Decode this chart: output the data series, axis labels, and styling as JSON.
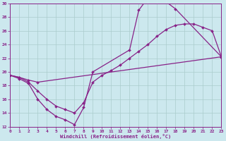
{
  "xlabel": "Windchill (Refroidissement éolien,°C)",
  "xlim": [
    0,
    23
  ],
  "ylim": [
    12,
    30
  ],
  "xticks": [
    0,
    1,
    2,
    3,
    4,
    5,
    6,
    7,
    8,
    9,
    10,
    11,
    12,
    13,
    14,
    15,
    16,
    17,
    18,
    19,
    20,
    21,
    22,
    23
  ],
  "yticks": [
    12,
    14,
    16,
    18,
    20,
    22,
    24,
    26,
    28,
    30
  ],
  "bg_color": "#cce8ee",
  "line_color": "#882288",
  "grid_color": "#aacccc",
  "curve1_x": [
    0,
    1,
    2,
    3,
    4,
    5,
    6,
    7,
    8,
    9,
    13,
    14,
    15,
    16,
    17,
    18,
    23
  ],
  "curve1_y": [
    19.5,
    19.0,
    18.3,
    16.0,
    14.5,
    13.5,
    13.0,
    12.3,
    14.8,
    20.0,
    23.2,
    29.0,
    30.8,
    30.5,
    30.2,
    29.2,
    22.2
  ],
  "curve2_x": [
    0,
    1,
    2,
    3,
    23
  ],
  "curve2_y": [
    19.5,
    19.2,
    18.8,
    18.5,
    22.2
  ],
  "curve3_x": [
    0,
    1,
    2,
    3,
    4,
    5,
    6,
    7,
    8,
    9,
    10,
    11,
    12,
    13,
    14,
    15,
    16,
    17,
    18,
    19,
    20,
    21,
    22,
    23
  ],
  "curve3_y": [
    19.5,
    19.2,
    18.5,
    17.2,
    16.0,
    15.0,
    14.5,
    14.0,
    15.5,
    18.5,
    19.5,
    20.2,
    21.0,
    22.0,
    23.0,
    24.0,
    25.2,
    26.2,
    26.8,
    27.0,
    27.0,
    26.5,
    26.0,
    22.2
  ]
}
